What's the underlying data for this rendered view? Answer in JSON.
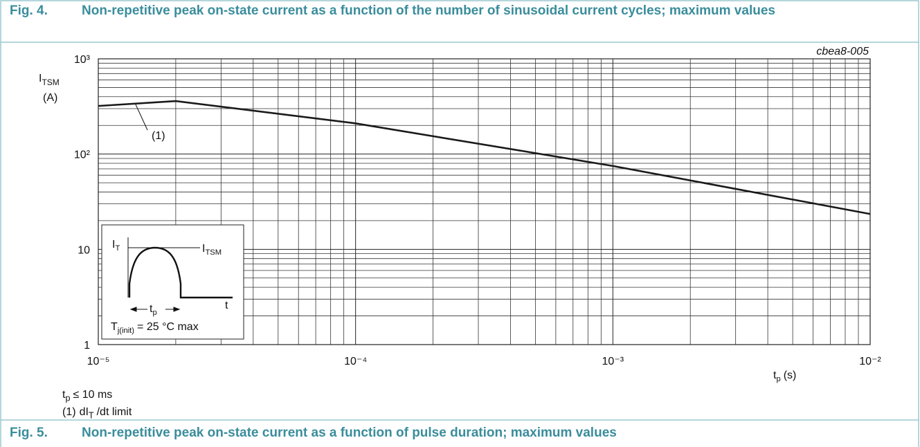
{
  "header": {
    "number": "Fig. 4.",
    "title": "Non-repetitive peak on-state current as a function of the number of sinusoidal current cycles; maximum values"
  },
  "chart_data": {
    "type": "line",
    "figure_id": "cbea8-005",
    "xscale": "log",
    "yscale": "log",
    "grid": true,
    "xlim": [
      1e-05,
      0.01
    ],
    "ylim": [
      1,
      1000
    ],
    "xticks": [
      {
        "value": 1e-05,
        "label": "10⁻⁵"
      },
      {
        "value": 0.0001,
        "label": "10⁻⁴"
      },
      {
        "value": 0.001,
        "label": "10⁻³"
      },
      {
        "value": 0.01,
        "label": "10⁻²"
      }
    ],
    "yticks": [
      1,
      10,
      {
        "value": 100,
        "label": "10²"
      },
      {
        "value": 1000,
        "label": "10³"
      }
    ],
    "xminorticks": [
      2e-05,
      3e-05,
      4e-05,
      5e-05,
      6e-05,
      7e-05,
      8e-05,
      9e-05,
      0.0002,
      0.0003,
      0.0004,
      0.0005,
      0.0006,
      0.0007,
      0.0008,
      0.0009,
      0.002,
      0.003,
      0.004,
      0.005,
      0.006,
      0.007,
      0.008,
      0.009
    ],
    "yminorticks": [
      2,
      3,
      4,
      5,
      6,
      7,
      8,
      9,
      20,
      30,
      40,
      50,
      60,
      70,
      80,
      90,
      200,
      300,
      400,
      500,
      600,
      700,
      800,
      900
    ],
    "ylabel": {
      "symbol": "I",
      "sub": "TSM",
      "unit": "(A)"
    },
    "xlabel": {
      "symbol": "t",
      "sub": "p",
      "unit": "(s)"
    },
    "x": [
      1e-05,
      2e-05,
      0.0001,
      0.001,
      0.01
    ],
    "series": [
      {
        "color": "#1a1a1a",
        "values": [
          320,
          360,
          210,
          75,
          23.5
        ]
      }
    ],
    "annotation": "(1)",
    "inset": {
      "current": {
        "symbol": "I",
        "sub": "T"
      },
      "peak": {
        "symbol": "I",
        "sub": "TSM"
      },
      "duration": {
        "symbol": "t",
        "sub": "p"
      },
      "time": "t",
      "condition": {
        "symbol": "T",
        "sub": "j(init)",
        "rest": "= 25 °C max"
      }
    }
  },
  "notes": [
    {
      "symbol": "t",
      "sub": "p",
      "rest": "≤ 10 ms"
    },
    {
      "marker": "(1)",
      "symbol": "dI",
      "sub": "T",
      "rest": "/dt limit"
    }
  ],
  "footer": {
    "number": "Fig. 5.",
    "title": "Non-repetitive peak on-state current as a function of pulse duration; maximum values"
  }
}
